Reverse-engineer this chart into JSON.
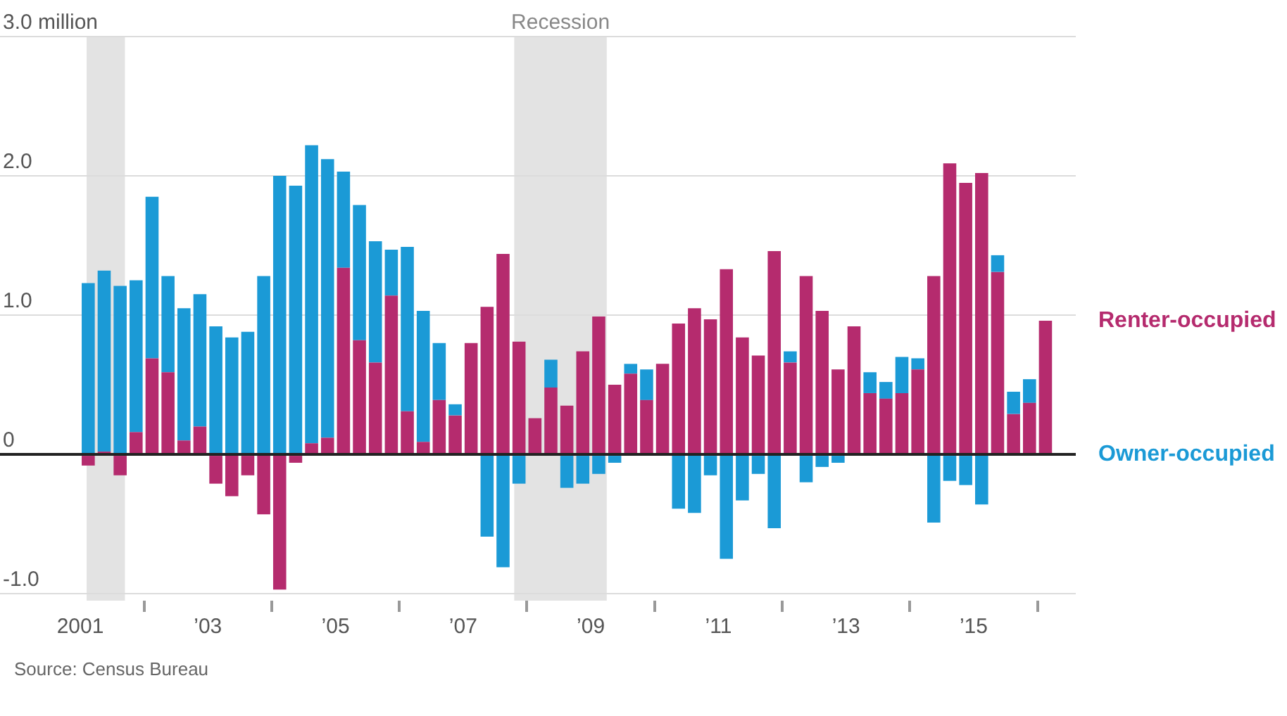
{
  "chart_data": {
    "type": "bar",
    "stacked": true,
    "x": [
      2001.125,
      2001.375,
      2001.625,
      2001.875,
      2002.125,
      2002.375,
      2002.625,
      2002.875,
      2003.125,
      2003.375,
      2003.625,
      2003.875,
      2004.125,
      2004.375,
      2004.625,
      2004.875,
      2005.125,
      2005.375,
      2005.625,
      2005.875,
      2006.125,
      2006.375,
      2006.625,
      2006.875,
      2007.125,
      2007.375,
      2007.625,
      2007.875,
      2008.125,
      2008.375,
      2008.625,
      2008.875,
      2009.125,
      2009.375,
      2009.625,
      2009.875,
      2010.125,
      2010.375,
      2010.625,
      2010.875,
      2011.125,
      2011.375,
      2011.625,
      2011.875,
      2012.125,
      2012.375,
      2012.625,
      2012.875,
      2013.125,
      2013.375,
      2013.625,
      2013.875,
      2014.125,
      2014.375,
      2014.625,
      2014.875,
      2015.125,
      2015.375,
      2015.625,
      2015.875,
      2016.125
    ],
    "series": [
      {
        "name": "Renter-occupied",
        "color": "#b52b6e",
        "values": [
          -0.08,
          0.02,
          -0.15,
          0.16,
          0.69,
          0.59,
          0.1,
          0.2,
          -0.21,
          -0.3,
          -0.15,
          -0.43,
          -0.97,
          -0.06,
          0.08,
          0.12,
          1.34,
          0.82,
          0.66,
          1.14,
          0.31,
          0.09,
          0.39,
          0.28,
          0.8,
          1.06,
          1.44,
          0.81,
          0.26,
          0.48,
          0.35,
          0.74,
          0.99,
          0.5,
          0.58,
          0.39,
          0.65,
          0.94,
          1.05,
          0.97,
          1.33,
          0.84,
          0.71,
          1.46,
          0.66,
          1.28,
          1.03,
          0.61,
          0.92,
          0.44,
          0.4,
          0.44,
          0.61,
          1.28,
          2.09,
          1.95,
          2.02,
          1.31,
          0.29,
          0.37,
          0.96
        ]
      },
      {
        "name": "Owner-occupied",
        "color": "#1b9ad6",
        "values": [
          1.23,
          1.3,
          1.21,
          1.09,
          1.16,
          0.69,
          0.95,
          0.95,
          0.92,
          0.84,
          0.88,
          1.28,
          2.0,
          1.93,
          2.14,
          2.0,
          0.69,
          0.97,
          0.87,
          0.33,
          1.18,
          0.94,
          0.41,
          0.08,
          0,
          -0.59,
          -0.81,
          -0.21,
          0,
          0.2,
          -0.24,
          -0.21,
          -0.14,
          -0.06,
          0.07,
          0.22,
          0,
          -0.39,
          -0.42,
          -0.15,
          -0.75,
          -0.33,
          -0.14,
          -0.53,
          0.08,
          -0.2,
          -0.09,
          -0.06,
          0,
          0.15,
          0.12,
          0.26,
          0.08,
          -0.49,
          -0.19,
          -0.22,
          -0.36,
          0.12,
          0.16,
          0.17,
          0
        ]
      }
    ],
    "xlim": [
      2001,
      2016.6
    ],
    "xticks": [
      {
        "value": 2001,
        "label": "2001"
      },
      {
        "value": 2003,
        "label": "’03"
      },
      {
        "value": 2005,
        "label": "’05"
      },
      {
        "value": 2007,
        "label": "’07"
      },
      {
        "value": 2009,
        "label": "’09"
      },
      {
        "value": 2011,
        "label": "’11"
      },
      {
        "value": 2013,
        "label": "’13"
      },
      {
        "value": 2015,
        "label": "’15"
      }
    ],
    "ylim": [
      -1.05,
      3.0
    ],
    "yticks": [
      {
        "value": -1,
        "label": "-1.0"
      },
      {
        "value": 0,
        "label": "0"
      },
      {
        "value": 1,
        "label": "1.0"
      },
      {
        "value": 2,
        "label": "2.0"
      },
      {
        "value": 3,
        "label": "3.0 million"
      }
    ],
    "grid": "y",
    "legend": false,
    "bands": [
      {
        "axis": "x",
        "from": 2001.1,
        "to": 2001.7,
        "color": "#e3e3e3"
      },
      {
        "axis": "x",
        "from": 2007.8,
        "to": 2009.25,
        "label": "Recession",
        "color": "#e3e3e3"
      }
    ],
    "annotations": [
      "Source: Census Bureau"
    ]
  }
}
